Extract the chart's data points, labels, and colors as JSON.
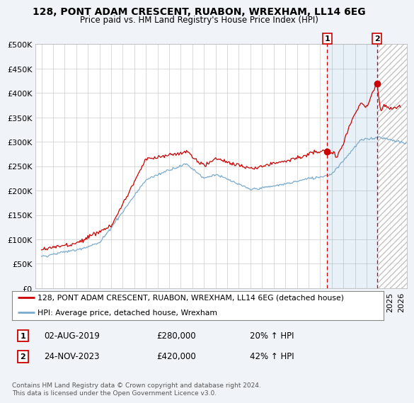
{
  "title": "128, PONT ADAM CRESCENT, RUABON, WREXHAM, LL14 6EG",
  "subtitle": "Price paid vs. HM Land Registry's House Price Index (HPI)",
  "ylim": [
    0,
    500000
  ],
  "yticks": [
    0,
    50000,
    100000,
    150000,
    200000,
    250000,
    300000,
    350000,
    400000,
    450000,
    500000
  ],
  "ytick_labels": [
    "£0",
    "£50K",
    "£100K",
    "£150K",
    "£200K",
    "£250K",
    "£300K",
    "£350K",
    "£400K",
    "£450K",
    "£500K"
  ],
  "background_color": "#f0f4f8",
  "plot_bg_color": "#ffffff",
  "red_line_color": "#cc0000",
  "blue_line_color": "#7aabcf",
  "vline_color": "#cc0000",
  "marker1_date": 2019.6,
  "marker2_date": 2023.9,
  "marker1_price_val": 280000,
  "marker2_price_val": 420000,
  "marker1_label": "02-AUG-2019",
  "marker1_price": "£280,000",
  "marker1_hpi": "20% ↑ HPI",
  "marker2_label": "24-NOV-2023",
  "marker2_price": "£420,000",
  "marker2_hpi": "42% ↑ HPI",
  "legend_line1": "128, PONT ADAM CRESCENT, RUABON, WREXHAM, LL14 6EG (detached house)",
  "legend_line2": "HPI: Average price, detached house, Wrexham",
  "footer": "Contains HM Land Registry data © Crown copyright and database right 2024.\nThis data is licensed under the Open Government Licence v3.0.",
  "xmin": 1994.5,
  "xmax": 2026.5,
  "future_start": 2024.0
}
